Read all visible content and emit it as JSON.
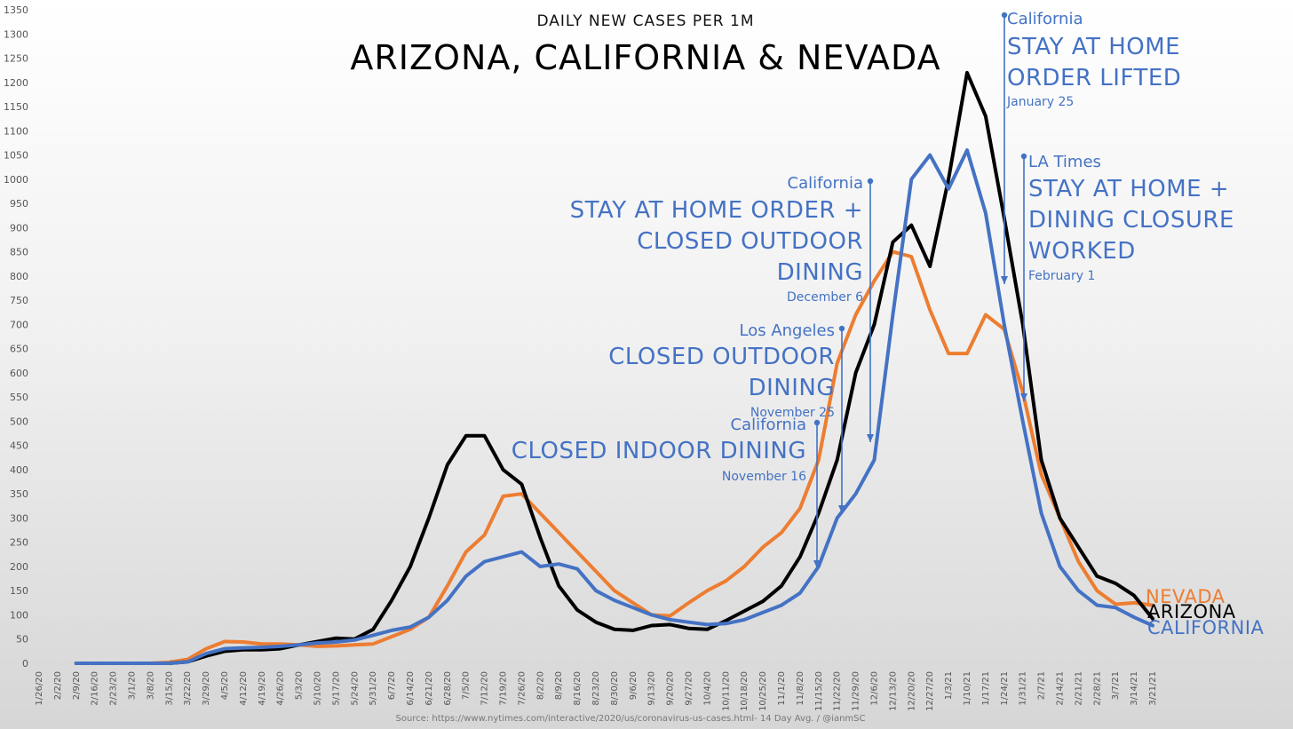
{
  "chart_data": {
    "type": "line",
    "subtitle": "DAILY NEW CASES PER 1M",
    "title": "ARIZONA, CALIFORNIA & NEVADA",
    "source": "Source: https://www.nytimes.com/interactive/2020/us/coronavirus-us-cases.html- 14 Day Avg.  / @ianmSC",
    "ylim": [
      0,
      1350
    ],
    "yticks": [
      0,
      50,
      100,
      150,
      200,
      250,
      300,
      350,
      400,
      450,
      500,
      550,
      600,
      650,
      700,
      750,
      800,
      850,
      900,
      950,
      1000,
      1050,
      1100,
      1150,
      1200,
      1250,
      1300,
      1350
    ],
    "grid": false,
    "xticks": [
      "1/26/20",
      "2/2/20",
      "2/9/20",
      "2/16/20",
      "2/23/20",
      "3/1/20",
      "3/8/20",
      "3/15/20",
      "3/22/20",
      "3/29/20",
      "4/5/20",
      "4/12/20",
      "4/19/20",
      "4/26/20",
      "5/3/20",
      "5/10/20",
      "5/17/20",
      "5/24/20",
      "5/31/20",
      "6/7/20",
      "6/14/20",
      "6/21/20",
      "6/28/20",
      "7/5/20",
      "7/12/20",
      "7/19/20",
      "7/26/20",
      "8/2/20",
      "8/9/20",
      "8/16/20",
      "8/23/20",
      "8/30/20",
      "9/6/20",
      "9/13/20",
      "9/20/20",
      "9/27/20",
      "10/4/20",
      "10/11/20",
      "10/18/20",
      "10/25/20",
      "11/1/20",
      "11/8/20",
      "11/15/20",
      "11/22/20",
      "11/29/20",
      "12/6/20",
      "12/13/20",
      "12/20/20",
      "12/27/20",
      "1/3/21",
      "1/10/21",
      "1/17/21",
      "1/24/21",
      "1/31/21",
      "2/7/21",
      "2/14/21",
      "2/21/21",
      "2/28/21",
      "3/7/21",
      "3/14/21",
      "3/21/21"
    ],
    "series": [
      {
        "name": "NEVADA",
        "color": "#ed7d31",
        "values": [
          null,
          null,
          0,
          0,
          0,
          0,
          0,
          2,
          8,
          30,
          45,
          44,
          40,
          40,
          38,
          35,
          36,
          38,
          40,
          55,
          70,
          95,
          160,
          230,
          265,
          345,
          350,
          310,
          270,
          230,
          190,
          150,
          125,
          100,
          98,
          125,
          150,
          170,
          200,
          240,
          270,
          320,
          420,
          620,
          720,
          790,
          850,
          840,
          730,
          640,
          640,
          720,
          690,
          560,
          390,
          300,
          210,
          150,
          122,
          125,
          120
        ],
        "end_label": "NEVADA"
      },
      {
        "name": "ARIZONA",
        "color": "#000000",
        "values": [
          null,
          null,
          0,
          0,
          0,
          0,
          0,
          0,
          3,
          15,
          25,
          28,
          28,
          30,
          38,
          45,
          52,
          50,
          70,
          130,
          200,
          300,
          410,
          470,
          470,
          400,
          370,
          260,
          160,
          110,
          85,
          70,
          68,
          78,
          80,
          72,
          70,
          88,
          108,
          128,
          160,
          220,
          310,
          420,
          600,
          700,
          870,
          905,
          820,
          1000,
          1220,
          1130,
          920,
          700,
          420,
          300,
          240,
          180,
          165,
          140,
          92
        ],
        "end_label": "ARIZONA"
      },
      {
        "name": "CALIFORNIA",
        "color": "#4472c4",
        "values": [
          null,
          null,
          0,
          0,
          0,
          0,
          0,
          0,
          3,
          20,
          30,
          32,
          33,
          35,
          38,
          42,
          44,
          48,
          58,
          68,
          75,
          95,
          130,
          180,
          210,
          220,
          230,
          200,
          205,
          195,
          150,
          130,
          115,
          100,
          90,
          85,
          80,
          82,
          90,
          105,
          120,
          145,
          200,
          300,
          350,
          420,
          720,
          1000,
          1050,
          980,
          1060,
          930,
          700,
          500,
          310,
          200,
          150,
          120,
          115,
          95,
          78
        ],
        "end_label": "CALIFORNIA"
      }
    ],
    "annotations": [
      {
        "place": "California",
        "lines": [
          "CLOSED INDOOR DINING"
        ],
        "date": "November 16"
      },
      {
        "place": "Los Angeles",
        "lines": [
          "CLOSED OUTDOOR",
          "DINING"
        ],
        "date": "November 25"
      },
      {
        "place": "California",
        "lines": [
          "STAY AT HOME ORDER +",
          "CLOSED OUTDOOR",
          "DINING"
        ],
        "date": "December 6"
      },
      {
        "place": "California",
        "lines": [
          "STAY AT HOME",
          "ORDER LIFTED"
        ],
        "date": "January 25"
      },
      {
        "place": "LA Times",
        "lines": [
          "STAY AT HOME +",
          "DINING CLOSURE",
          "WORKED"
        ],
        "date": "February 1"
      }
    ]
  }
}
